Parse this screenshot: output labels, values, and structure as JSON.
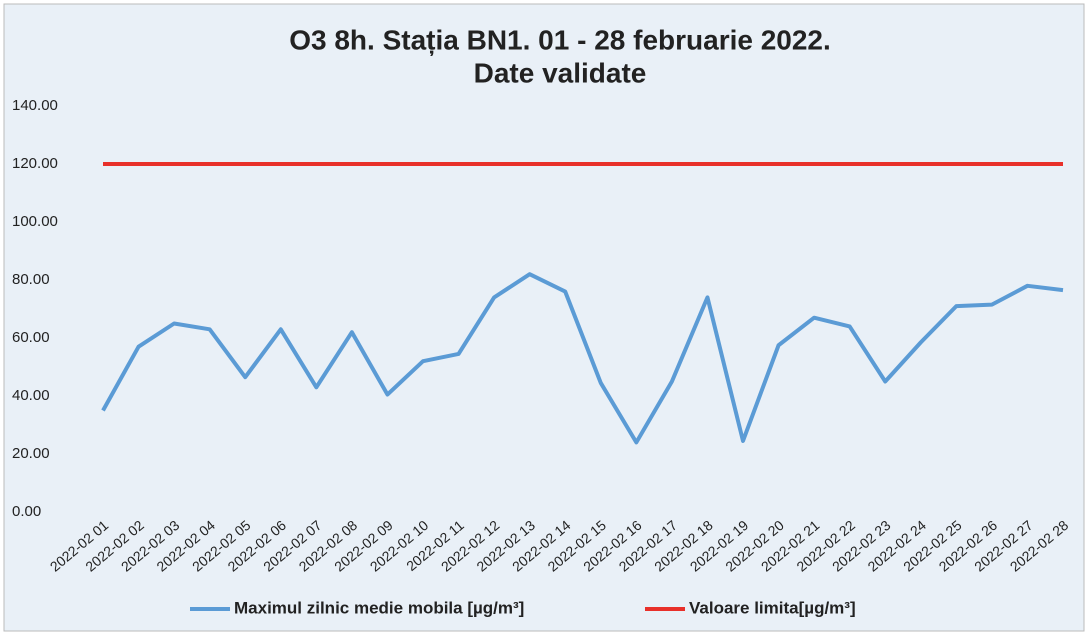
{
  "chart_data": {
    "type": "line",
    "title": [
      "O3 8h. Stația BN1. 01 - 28 februarie 2022.",
      "Date validate"
    ],
    "categories": [
      "2022-02 01",
      "2022-02 02",
      "2022-02 03",
      "2022-02 04",
      "2022-02 05",
      "2022-02 06",
      "2022-02 07",
      "2022-02 08",
      "2022-02 09",
      "2022-02 10",
      "2022-02 11",
      "2022-02 12",
      "2022-02 13",
      "2022-02 14",
      "2022-02 15",
      "2022-02 16",
      "2022-02 17",
      "2022-02 18",
      "2022-02 19",
      "2022-02 20",
      "2022-02 21",
      "2022-02 22",
      "2022-02 23",
      "2022-02 24",
      "2022-02 25",
      "2022-02 26",
      "2022-02 27",
      "2022-02 28"
    ],
    "series": [
      {
        "name": "Maximul zilnic medie mobila [µg/m³]",
        "color": "#5b9bd5",
        "values": [
          35,
          57,
          65,
          63,
          46.5,
          63,
          43,
          62,
          40.5,
          52,
          54.5,
          74,
          82,
          76,
          44.5,
          24,
          45,
          74,
          24.5,
          57.5,
          67,
          64,
          45,
          58.5,
          71,
          71.5,
          78,
          76.5
        ]
      },
      {
        "name": "Valoare limita[µg/m³]",
        "color": "#e8302a",
        "values": [
          120,
          120,
          120,
          120,
          120,
          120,
          120,
          120,
          120,
          120,
          120,
          120,
          120,
          120,
          120,
          120,
          120,
          120,
          120,
          120,
          120,
          120,
          120,
          120,
          120,
          120,
          120,
          120
        ]
      }
    ],
    "ylim": [
      0,
      140
    ],
    "yticks": [
      {
        "value": 0,
        "label": "0.00"
      },
      {
        "value": 20,
        "label": "20.00"
      },
      {
        "value": 40,
        "label": "40.00"
      },
      {
        "value": 60,
        "label": "60.00"
      },
      {
        "value": 80,
        "label": "80.00"
      },
      {
        "value": 100,
        "label": "100.00"
      },
      {
        "value": 120,
        "label": "120.00"
      },
      {
        "value": 140,
        "label": "140.00"
      }
    ],
    "grid": false,
    "legend": "bottom"
  }
}
